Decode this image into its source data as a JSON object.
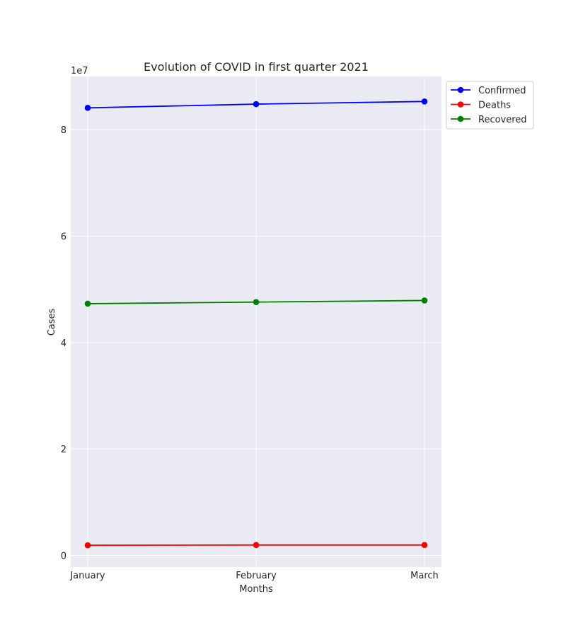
{
  "chart_data": {
    "type": "line",
    "title": "Evolution of COVID in first quarter 2021",
    "xlabel": "Months",
    "ylabel": "Cases",
    "y_offset_label": "1e7",
    "categories": [
      "January",
      "February",
      "March"
    ],
    "ylim": [
      -2200000,
      90000000
    ],
    "y_ticks": [
      0,
      20000000,
      40000000,
      60000000,
      80000000
    ],
    "y_tick_labels": [
      "0",
      "2",
      "4",
      "6",
      "8"
    ],
    "grid": true,
    "legend_position": "outside upper right",
    "series": [
      {
        "name": "Confirmed",
        "color": "#0000ff",
        "values": [
          84100000,
          84800000,
          85300000
        ]
      },
      {
        "name": "Deaths",
        "color": "#ff0000",
        "values": [
          1900000,
          1950000,
          1950000
        ]
      },
      {
        "name": "Recovered",
        "color": "#008000",
        "values": [
          47300000,
          47600000,
          47900000
        ]
      }
    ]
  }
}
